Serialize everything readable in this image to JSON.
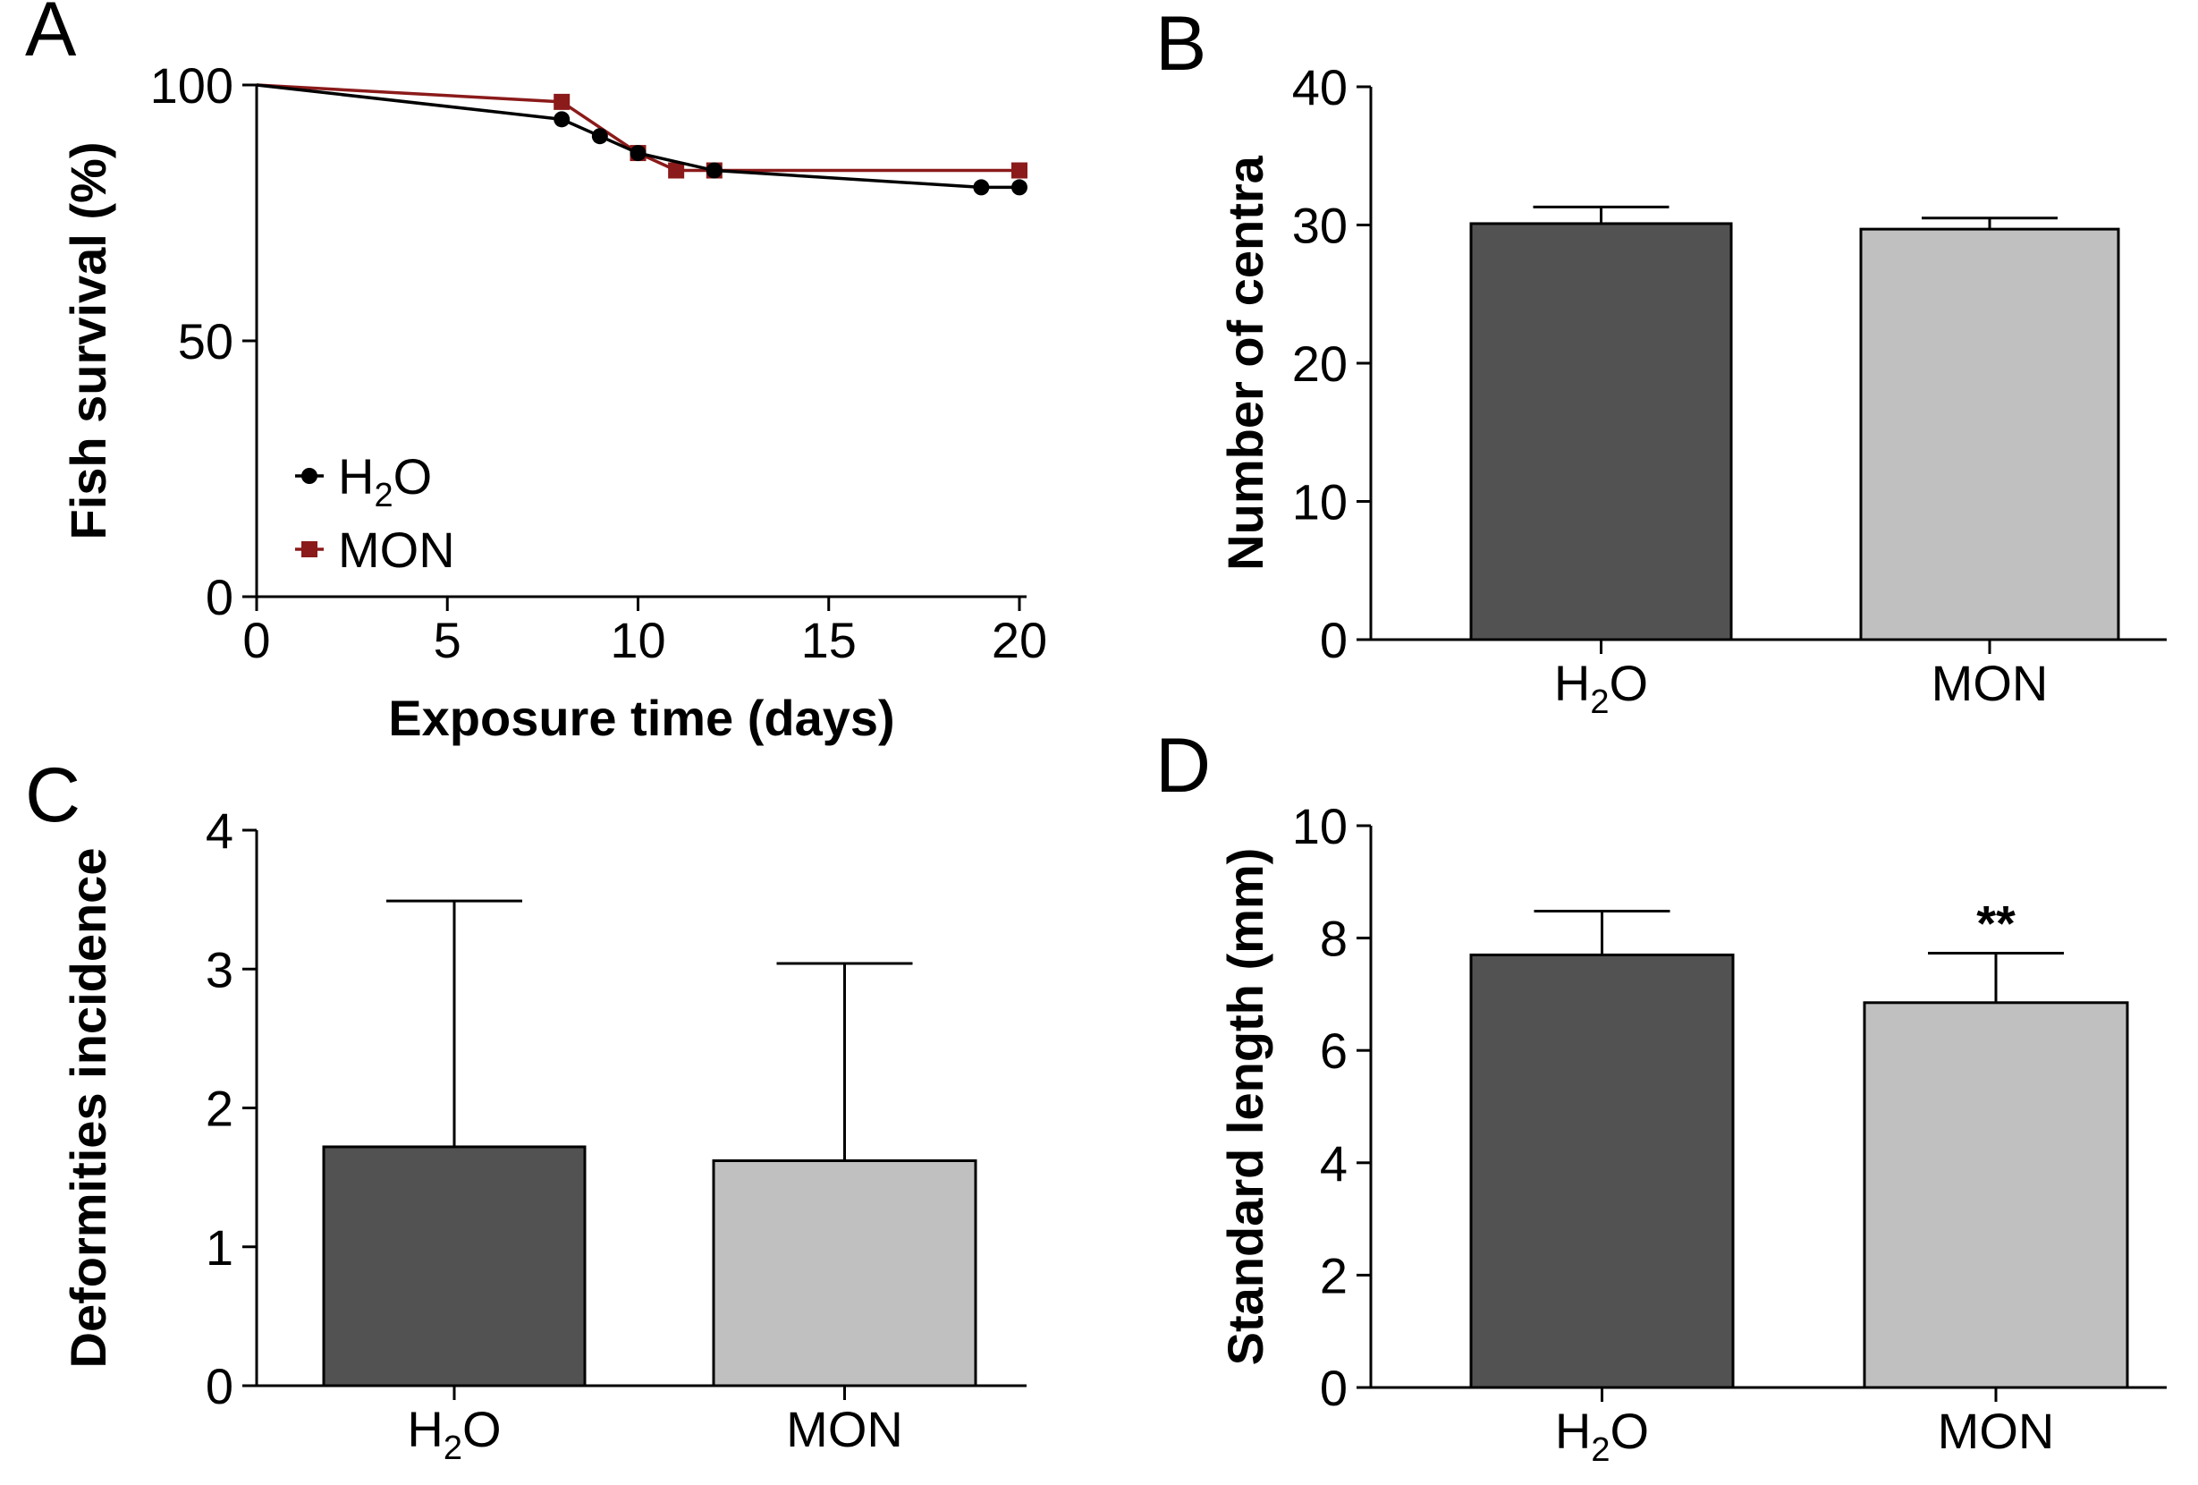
{
  "chart_data": [
    {
      "panel": "A",
      "type": "line",
      "xlabel": "Exposure time (days)",
      "ylabel": "Fish survival (%)",
      "xlim": [
        0,
        20
      ],
      "ylim": [
        0,
        100
      ],
      "xticks": [
        "0",
        "5",
        "10",
        "15",
        "20"
      ],
      "yticks": [
        "0",
        "50",
        "100"
      ],
      "legend_position": "bottom-left",
      "series": [
        {
          "name": "H2O",
          "legend_label": "H",
          "legend_sub": "2",
          "legend_suffix": "O",
          "color": "#000000",
          "marker": "circle",
          "x": [
            0,
            8,
            9,
            10,
            12,
            19,
            20
          ],
          "y": [
            100,
            93.3,
            90,
            86.7,
            83.3,
            80,
            80
          ]
        },
        {
          "name": "MON",
          "legend_label": "MON",
          "legend_sub": "",
          "legend_suffix": "",
          "color": "#8b1a1a",
          "marker": "square",
          "x": [
            0,
            8,
            10,
            11,
            12,
            20
          ],
          "y": [
            100,
            96.7,
            86.7,
            83.3,
            83.3,
            83.3
          ]
        }
      ]
    },
    {
      "panel": "B",
      "type": "bar",
      "ylabel": "Number of centra",
      "ylim": [
        0,
        40
      ],
      "yticks": [
        "0",
        "10",
        "20",
        "30",
        "40"
      ],
      "categories": [
        "H2O",
        "MON"
      ],
      "category_labels": [
        {
          "main": "H",
          "sub": "2",
          "suffix": "O"
        },
        {
          "main": "MON",
          "sub": "",
          "suffix": ""
        }
      ],
      "values": [
        30.1,
        29.7
      ],
      "errors": [
        1.2,
        0.8
      ],
      "colors": [
        "#525252",
        "#c0c0c0"
      ],
      "significance": [
        "",
        ""
      ]
    },
    {
      "panel": "C",
      "type": "bar",
      "ylabel": "Deformities incidence",
      "ylim": [
        0,
        4
      ],
      "yticks": [
        "0",
        "1",
        "2",
        "3",
        "4"
      ],
      "categories": [
        "H2O",
        "MON"
      ],
      "category_labels": [
        {
          "main": "H",
          "sub": "2",
          "suffix": "O"
        },
        {
          "main": "MON",
          "sub": "",
          "suffix": ""
        }
      ],
      "values": [
        1.72,
        1.62
      ],
      "errors": [
        1.77,
        1.42
      ],
      "colors": [
        "#525252",
        "#c0c0c0"
      ],
      "significance": [
        "",
        ""
      ]
    },
    {
      "panel": "D",
      "type": "bar",
      "ylabel": "Standard length (mm)",
      "ylim": [
        0,
        10
      ],
      "yticks": [
        "0",
        "2",
        "4",
        "6",
        "8",
        "10"
      ],
      "categories": [
        "H2O",
        "MON"
      ],
      "category_labels": [
        {
          "main": "H",
          "sub": "2",
          "suffix": "O"
        },
        {
          "main": "MON",
          "sub": "",
          "suffix": ""
        }
      ],
      "values": [
        7.7,
        6.85
      ],
      "errors": [
        0.78,
        0.88
      ],
      "colors": [
        "#525252",
        "#c0c0c0"
      ],
      "significance": [
        "",
        "**"
      ]
    }
  ]
}
